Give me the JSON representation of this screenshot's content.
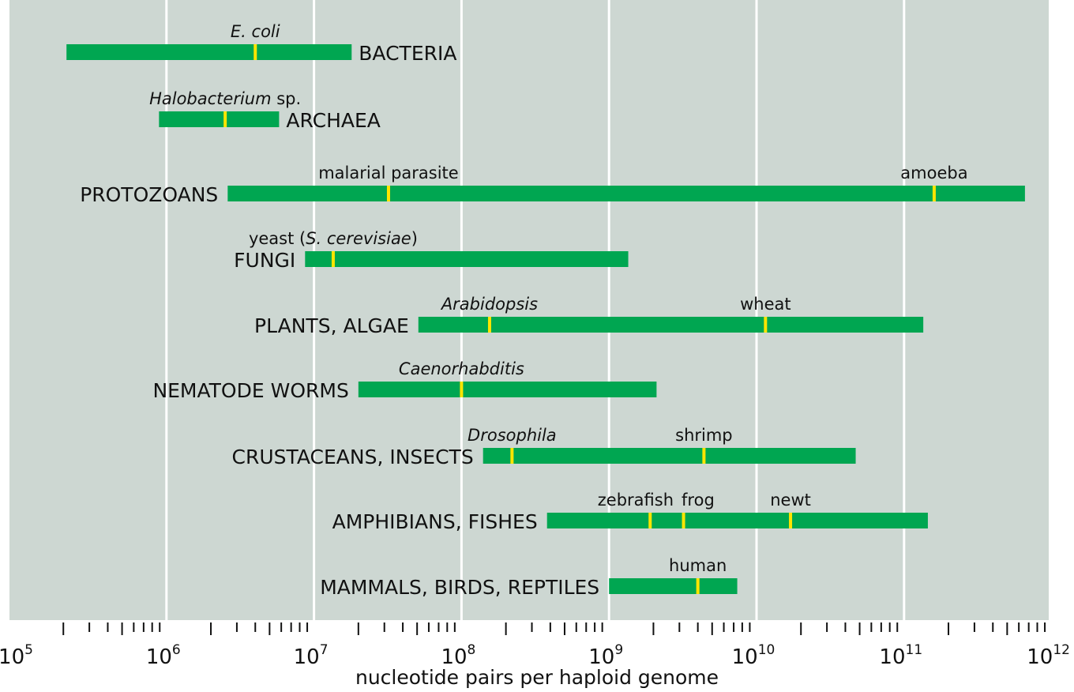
{
  "chart_data": {
    "type": "range-bar",
    "xlabel": "nucleotide pairs per haploid genome",
    "xscale": "log",
    "xlim": [
      100000.0,
      1000000000000.0
    ],
    "xticks": [
      {
        "base": "10",
        "exp": "5"
      },
      {
        "base": "10",
        "exp": "6"
      },
      {
        "base": "10",
        "exp": "7"
      },
      {
        "base": "10",
        "exp": "8"
      },
      {
        "base": "10",
        "exp": "9"
      },
      {
        "base": "10",
        "exp": "10"
      },
      {
        "base": "10",
        "exp": "11"
      },
      {
        "base": "10",
        "exp": "12"
      }
    ],
    "grid": true,
    "colors": {
      "background": "#cdd7d2",
      "bar": "#00a651",
      "marker": "#ffe500",
      "grid": "#ffffff"
    },
    "groups": [
      {
        "label": "BACTERIA",
        "label_side": "right",
        "min": 210000.0,
        "max": 18000000.0,
        "species": [
          {
            "name": [
              {
                "t": "E. coli",
                "i": true
              }
            ],
            "value": 4000000.0
          }
        ]
      },
      {
        "label": "ARCHAEA",
        "label_side": "right",
        "min": 890000.0,
        "max": 5800000.0,
        "species": [
          {
            "name": [
              {
                "t": "Halobacterium",
                "i": true
              },
              {
                "t": " sp.",
                "i": false
              }
            ],
            "value": 2500000.0
          }
        ]
      },
      {
        "label": "PROTOZOANS",
        "label_side": "left",
        "min": 2600000.0,
        "max": 660000000000.0,
        "species": [
          {
            "name": [
              {
                "t": "malarial parasite",
                "i": false
              }
            ],
            "value": 32000000.0
          },
          {
            "name": [
              {
                "t": "amoeba",
                "i": false
              }
            ],
            "value": 160000000000.0
          }
        ]
      },
      {
        "label": "FUNGI",
        "label_side": "left",
        "min": 8700000.0,
        "max": 1350000000.0,
        "species": [
          {
            "name": [
              {
                "t": "yeast (",
                "i": false
              },
              {
                "t": "S. cerevisiae",
                "i": true
              },
              {
                "t": ")",
                "i": false
              }
            ],
            "value": 13500000.0
          }
        ]
      },
      {
        "label": "PLANTS, ALGAE",
        "label_side": "left",
        "min": 51000000.0,
        "max": 135000000000.0,
        "species": [
          {
            "name": [
              {
                "t": "Arabidopsis",
                "i": true
              }
            ],
            "value": 155000000.0
          },
          {
            "name": [
              {
                "t": "wheat",
                "i": false
              }
            ],
            "value": 11500000000.0
          }
        ]
      },
      {
        "label": "NEMATODE WORMS",
        "label_side": "left",
        "min": 20000000.0,
        "max": 2100000000.0,
        "species": [
          {
            "name": [
              {
                "t": "Caenorhabditis",
                "i": true
              }
            ],
            "value": 100000000.0
          }
        ]
      },
      {
        "label": "CRUSTACEANS, INSECTS",
        "label_side": "left",
        "min": 140000000.0,
        "max": 47000000000.0,
        "species": [
          {
            "name": [
              {
                "t": "Drosophila",
                "i": true
              }
            ],
            "value": 220000000.0
          },
          {
            "name": [
              {
                "t": "shrimp",
                "i": false
              }
            ],
            "value": 4400000000.0
          }
        ]
      },
      {
        "label": "AMPHIBIANS, FISHES",
        "label_side": "left",
        "min": 380000000.0,
        "max": 145000000000.0,
        "species": [
          {
            "name": [
              {
                "t": "zebrafish",
                "i": false
              }
            ],
            "value": 1900000000.0
          },
          {
            "name": [
              {
                "t": "frog",
                "i": false
              }
            ],
            "value": 3200000000.0
          },
          {
            "name": [
              {
                "t": "newt",
                "i": false
              }
            ],
            "value": 17000000000.0
          }
        ]
      },
      {
        "label": "MAMMALS, BIRDS, REPTILES",
        "label_side": "left",
        "min": 1000000000.0,
        "max": 7400000000.0,
        "species": [
          {
            "name": [
              {
                "t": "human",
                "i": false
              }
            ],
            "value": 4000000000.0
          }
        ]
      }
    ]
  }
}
